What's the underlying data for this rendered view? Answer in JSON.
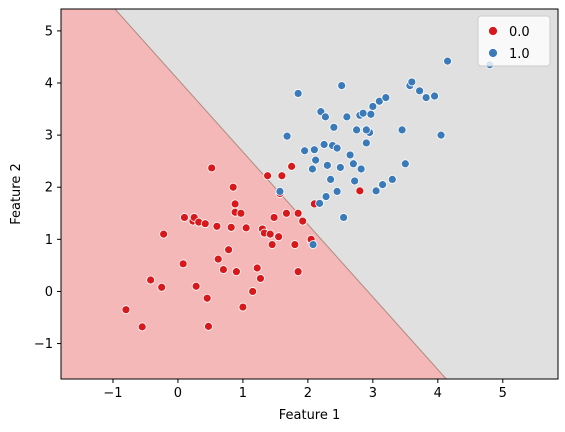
{
  "chart_data": {
    "type": "scatter",
    "title": "",
    "xlabel": "Feature 1",
    "ylabel": "Feature 2",
    "xlim": [
      -1.8,
      5.85
    ],
    "ylim": [
      -1.68,
      5.42
    ],
    "xticks": [
      -1,
      0,
      1,
      2,
      3,
      4,
      5
    ],
    "yticks": [
      -1,
      0,
      1,
      2,
      3,
      4,
      5
    ],
    "xtick_labels": [
      "−1",
      "0",
      "1",
      "2",
      "3",
      "4",
      "5"
    ],
    "ytick_labels": [
      "−1",
      "0",
      "1",
      "2",
      "3",
      "4",
      "5"
    ],
    "grid": false,
    "legend_position": "top-right",
    "decision_boundary": {
      "regions": [
        {
          "class": "0.0",
          "color": "#f4b8b8",
          "side": "lower-left"
        },
        {
          "class": "1.0",
          "color": "#e0e0e0",
          "side": "upper-right"
        }
      ],
      "line": [
        [
          -0.97,
          5.42
        ],
        [
          4.13,
          -1.68
        ]
      ]
    },
    "series": [
      {
        "name": "0.0",
        "color": "#d7191c",
        "points": [
          [
            -0.8,
            -0.35
          ],
          [
            -0.55,
            -0.68
          ],
          [
            -0.42,
            0.22
          ],
          [
            -0.25,
            0.08
          ],
          [
            -0.22,
            1.1
          ],
          [
            0.1,
            1.42
          ],
          [
            0.08,
            0.53
          ],
          [
            0.23,
            1.35
          ],
          [
            0.25,
            1.42
          ],
          [
            0.32,
            1.33
          ],
          [
            0.28,
            0.1
          ],
          [
            0.42,
            1.3
          ],
          [
            0.45,
            -0.13
          ],
          [
            0.47,
            -0.67
          ],
          [
            0.52,
            2.37
          ],
          [
            0.6,
            1.25
          ],
          [
            0.62,
            0.62
          ],
          [
            0.7,
            0.42
          ],
          [
            0.78,
            0.8
          ],
          [
            0.82,
            1.23
          ],
          [
            0.85,
            2.0
          ],
          [
            0.88,
            1.52
          ],
          [
            0.88,
            1.68
          ],
          [
            0.9,
            0.38
          ],
          [
            0.97,
            1.5
          ],
          [
            1.0,
            -0.3
          ],
          [
            1.05,
            1.22
          ],
          [
            1.15,
            0.0
          ],
          [
            1.22,
            0.45
          ],
          [
            1.27,
            0.25
          ],
          [
            1.3,
            1.2
          ],
          [
            1.33,
            1.12
          ],
          [
            1.38,
            2.22
          ],
          [
            1.42,
            1.1
          ],
          [
            1.45,
            0.9
          ],
          [
            1.48,
            1.42
          ],
          [
            1.55,
            1.05
          ],
          [
            1.57,
            1.88
          ],
          [
            1.6,
            2.22
          ],
          [
            1.67,
            1.5
          ],
          [
            1.75,
            2.4
          ],
          [
            1.8,
            0.9
          ],
          [
            1.85,
            0.38
          ],
          [
            1.85,
            1.5
          ],
          [
            1.92,
            1.35
          ],
          [
            2.05,
            0.97
          ],
          [
            2.1,
            1.68
          ],
          [
            2.05,
            1.0
          ],
          [
            2.8,
            1.93
          ]
        ]
      },
      {
        "name": "1.0",
        "color": "#3b7ab8",
        "points": [
          [
            1.57,
            1.92
          ],
          [
            1.68,
            2.98
          ],
          [
            1.85,
            3.8
          ],
          [
            1.95,
            2.7
          ],
          [
            2.07,
            2.35
          ],
          [
            2.08,
            0.9
          ],
          [
            2.1,
            2.72
          ],
          [
            2.12,
            2.52
          ],
          [
            2.18,
            1.69
          ],
          [
            2.2,
            3.45
          ],
          [
            2.25,
            2.82
          ],
          [
            2.27,
            3.35
          ],
          [
            2.28,
            1.82
          ],
          [
            2.3,
            2.42
          ],
          [
            2.35,
            2.15
          ],
          [
            2.38,
            2.8
          ],
          [
            2.4,
            3.15
          ],
          [
            2.45,
            1.92
          ],
          [
            2.45,
            2.75
          ],
          [
            2.5,
            2.38
          ],
          [
            2.52,
            3.95
          ],
          [
            2.55,
            1.42
          ],
          [
            2.6,
            3.35
          ],
          [
            2.65,
            2.62
          ],
          [
            2.7,
            2.45
          ],
          [
            2.72,
            2.12
          ],
          [
            2.75,
            3.1
          ],
          [
            2.8,
            3.38
          ],
          [
            2.82,
            2.35
          ],
          [
            2.85,
            3.42
          ],
          [
            2.9,
            2.85
          ],
          [
            2.95,
            3.05
          ],
          [
            2.97,
            3.4
          ],
          [
            3.0,
            3.55
          ],
          [
            3.05,
            1.93
          ],
          [
            3.1,
            3.65
          ],
          [
            3.15,
            2.05
          ],
          [
            3.2,
            3.72
          ],
          [
            3.3,
            2.15
          ],
          [
            3.45,
            3.1
          ],
          [
            3.5,
            2.45
          ],
          [
            3.57,
            3.95
          ],
          [
            3.6,
            4.02
          ],
          [
            3.72,
            3.85
          ],
          [
            3.82,
            3.72
          ],
          [
            3.95,
            3.75
          ],
          [
            4.05,
            3.0
          ],
          [
            4.15,
            4.42
          ],
          [
            4.8,
            4.35
          ],
          [
            2.9,
            3.1
          ]
        ]
      }
    ]
  }
}
